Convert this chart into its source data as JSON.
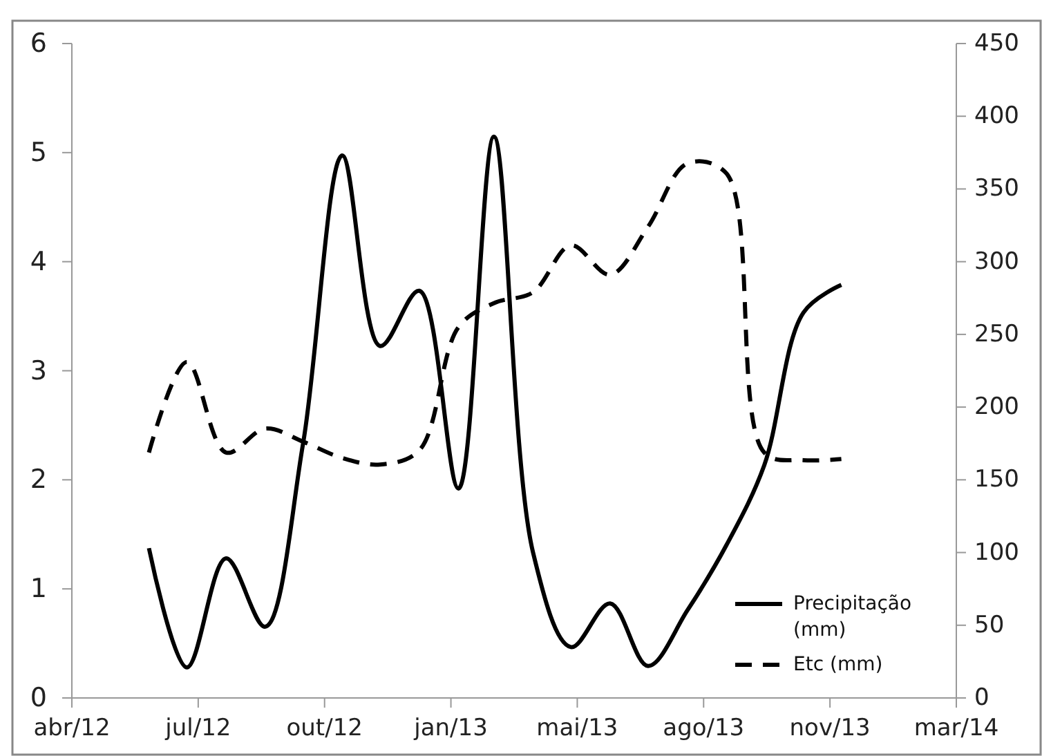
{
  "chart_data": {
    "type": "line",
    "x": [
      "2012-06-01",
      "2012-07-01",
      "2012-08-01",
      "2012-09-01",
      "2012-10-01",
      "2012-11-01",
      "2012-12-01",
      "2013-01-01",
      "2013-02-01",
      "2013-03-01",
      "2013-04-01",
      "2013-05-01",
      "2013-06-01",
      "2013-07-01",
      "2013-08-01",
      "2013-09-01",
      "2013-10-01",
      "2013-11-01",
      "2013-12-01"
    ],
    "series": [
      {
        "name": "Precipitação (mm)",
        "color": "#000000",
        "axis": "y2",
        "line_style": "solid",
        "values": [
          103,
          21,
          96,
          49,
          175,
          373,
          242,
          280,
          144,
          386,
          100,
          35,
          65,
          22,
          60,
          105,
          160,
          265,
          284
        ]
      },
      {
        "name": "Etc (mm)",
        "color": "#000000",
        "axis": "y",
        "line_style": "dashed",
        "values": [
          2.25,
          3.08,
          2.25,
          2.47,
          2.35,
          2.2,
          2.14,
          2.27,
          3.4,
          3.62,
          3.72,
          4.15,
          3.88,
          4.32,
          4.9,
          4.81,
          2.25,
          2.18,
          2.19
        ]
      }
    ],
    "xlim": [
      "2012-04-01",
      "2014-03-02"
    ],
    "xticks": [
      {
        "value": "2012-04-01",
        "label": "abr/12"
      },
      {
        "value": "2012-07-10",
        "label": "jul/12"
      },
      {
        "value": "2012-10-18",
        "label": "out/12"
      },
      {
        "value": "2013-01-26",
        "label": "jan/13"
      },
      {
        "value": "2013-05-06",
        "label": "mai/13"
      },
      {
        "value": "2013-08-14",
        "label": "ago/13"
      },
      {
        "value": "2013-11-22",
        "label": "nov/13"
      },
      {
        "value": "2014-03-02",
        "label": "mar/14"
      }
    ],
    "ylim": [
      0,
      6
    ],
    "yticks": [
      0,
      1,
      2,
      3,
      4,
      5,
      6
    ],
    "y2lim": [
      0,
      450
    ],
    "y2ticks": [
      0,
      50,
      100,
      150,
      200,
      250,
      300,
      350,
      400,
      450
    ],
    "legend": "bottom right",
    "marker": "none"
  }
}
